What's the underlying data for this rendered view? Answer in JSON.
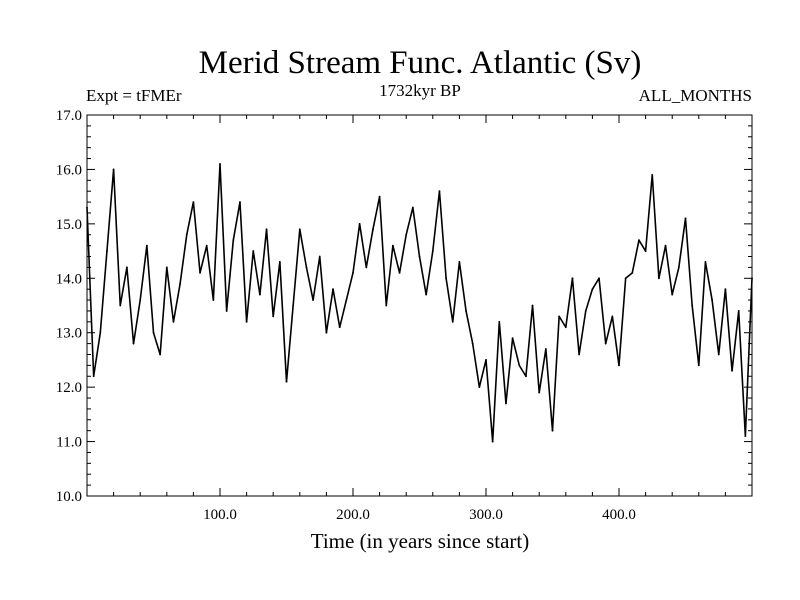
{
  "chart_data": {
    "type": "line",
    "title": "Merid Stream Func. Atlantic (Sv)",
    "subtitle_left": "Expt = tFMEr",
    "subtitle_center": "1732kyr BP",
    "subtitle_right": "ALL_MONTHS",
    "xlabel": "Time (in years since start)",
    "ylabel": "",
    "xlim": [
      0,
      500
    ],
    "ylim": [
      10.0,
      17.0
    ],
    "x_ticks": [
      100,
      200,
      300,
      400
    ],
    "x_tick_labels": [
      "100.0",
      "200.0",
      "300.0",
      "400.0"
    ],
    "y_ticks": [
      10,
      11,
      12,
      13,
      14,
      15,
      16,
      17
    ],
    "y_tick_labels": [
      "10.0",
      "11.0",
      "12.0",
      "13.0",
      "14.0",
      "15.0",
      "16.0",
      "17.0"
    ],
    "line_color": "#000000",
    "series": [
      {
        "name": "Merid Stream Func. Atlantic",
        "x": [
          0,
          5,
          10,
          15,
          20,
          25,
          30,
          35,
          40,
          45,
          50,
          55,
          60,
          65,
          70,
          75,
          80,
          85,
          90,
          95,
          100,
          105,
          110,
          115,
          120,
          125,
          130,
          135,
          140,
          145,
          150,
          155,
          160,
          165,
          170,
          175,
          180,
          185,
          190,
          195,
          200,
          205,
          210,
          215,
          220,
          225,
          230,
          235,
          240,
          245,
          250,
          255,
          260,
          265,
          270,
          275,
          280,
          285,
          290,
          295,
          300,
          305,
          310,
          315,
          320,
          325,
          330,
          335,
          340,
          345,
          350,
          355,
          360,
          365,
          370,
          375,
          380,
          385,
          390,
          395,
          400,
          405,
          410,
          415,
          420,
          425,
          430,
          435,
          440,
          445,
          450,
          455,
          460,
          465,
          470,
          475,
          480,
          485,
          490,
          495,
          500
        ],
        "values": [
          15.3,
          12.2,
          13.0,
          14.5,
          16.0,
          13.5,
          14.2,
          12.8,
          13.6,
          14.6,
          13.0,
          12.6,
          14.2,
          13.2,
          13.9,
          14.8,
          15.4,
          14.1,
          14.6,
          13.6,
          16.1,
          13.4,
          14.7,
          15.4,
          13.2,
          14.5,
          13.7,
          14.9,
          13.3,
          14.3,
          12.1,
          13.5,
          14.9,
          14.2,
          13.6,
          14.4,
          13.0,
          13.8,
          13.1,
          13.6,
          14.1,
          15.0,
          14.2,
          14.9,
          15.5,
          13.5,
          14.6,
          14.1,
          14.8,
          15.3,
          14.4,
          13.7,
          14.5,
          15.6,
          14.0,
          13.2,
          14.3,
          13.4,
          12.8,
          12.0,
          12.5,
          11.0,
          13.2,
          11.7,
          12.9,
          12.4,
          12.2,
          13.5,
          11.9,
          12.7,
          11.2,
          13.3,
          13.1,
          14.0,
          12.6,
          13.4,
          13.8,
          14.0,
          12.8,
          13.3,
          12.4,
          14.0,
          14.1,
          14.7,
          14.5,
          15.9,
          14.0,
          14.6,
          13.7,
          14.2,
          15.1,
          13.5,
          12.4,
          14.3,
          13.6,
          12.6,
          13.8,
          12.3,
          13.4,
          11.1,
          14.0
        ]
      }
    ]
  }
}
